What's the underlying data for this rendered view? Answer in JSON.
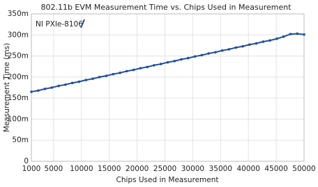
{
  "chart_data": {
    "type": "line",
    "title": "802.11b EVM Measurement Time vs. Chips Used in Measurement",
    "x_label": "Chips Used in Measurement",
    "y_label": "Measurement Time (ms)",
    "x": [
      1000,
      2225,
      3450,
      4675,
      5900,
      7125,
      8350,
      9575,
      10800,
      12025,
      13250,
      14475,
      15700,
      16925,
      18150,
      19375,
      20600,
      21825,
      23050,
      24275,
      25500,
      26725,
      27950,
      29175,
      30400,
      31625,
      32850,
      34075,
      35300,
      36525,
      37750,
      38975,
      40200,
      41425,
      42650,
      43875,
      45100,
      46325,
      47550,
      48775,
      50000
    ],
    "series": [
      {
        "name": "NI PXIe-8106",
        "color": "#1f4e9c",
        "values": [
          165,
          168,
          172,
          175,
          179,
          182,
          186,
          189,
          193,
          196,
          200,
          203,
          207,
          210,
          214,
          217,
          221,
          224,
          228,
          231,
          235,
          238,
          242,
          245,
          249,
          252,
          256,
          259,
          263,
          266,
          270,
          273,
          277,
          280,
          284,
          287,
          291,
          296,
          302,
          303,
          301
        ]
      }
    ],
    "xlim": [
      1000,
      50000
    ],
    "xticks": [
      1000,
      5000,
      10000,
      15000,
      20000,
      25000,
      30000,
      35000,
      40000,
      45000,
      50000
    ],
    "ylim": [
      0,
      350
    ],
    "yticks": [
      {
        "value": 0,
        "label": "0"
      },
      {
        "value": 50,
        "label": "50m"
      },
      {
        "value": 100,
        "label": "100m"
      },
      {
        "value": 150,
        "label": "150m"
      },
      {
        "value": 200,
        "label": "200m"
      },
      {
        "value": 250,
        "label": "250m"
      },
      {
        "value": 300,
        "label": "300m"
      },
      {
        "value": 350,
        "label": "350m"
      }
    ],
    "grid": true
  }
}
